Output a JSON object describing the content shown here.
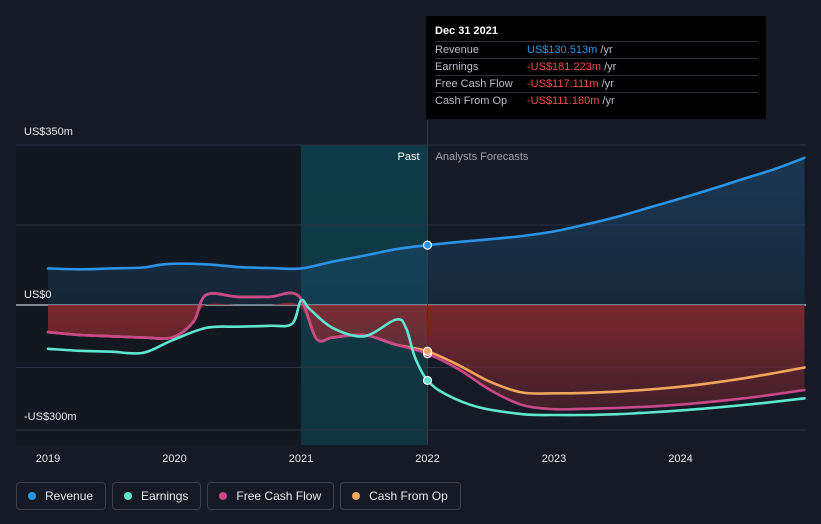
{
  "tooltip": {
    "date": "Dec 31 2021",
    "rows": [
      {
        "label": "Revenue",
        "value": "US$130.513m",
        "unit": "/yr",
        "color": "#2b93e6"
      },
      {
        "label": "Earnings",
        "value": "-US$181.223m",
        "unit": "/yr",
        "color": "#ef4d4d"
      },
      {
        "label": "Free Cash Flow",
        "value": "-US$117.111m",
        "unit": "/yr",
        "color": "#ef4d4d"
      },
      {
        "label": "Cash From Op",
        "value": "-US$111.180m",
        "unit": "/yr",
        "color": "#ef4d4d"
      }
    ]
  },
  "legend": [
    {
      "label": "Revenue",
      "color": "#2b93e6"
    },
    {
      "label": "Earnings",
      "color": "#5ee6cf"
    },
    {
      "label": "Free Cash Flow",
      "color": "#c8488a"
    },
    {
      "label": "Cash From Op",
      "color": "#f2a55c"
    }
  ],
  "chart_data": {
    "type": "line",
    "title": "",
    "xlabel": "",
    "ylabel": "",
    "xlim": [
      2018.75,
      2024.98
    ],
    "ylim": [
      -300,
      350
    ],
    "y_tick_labels": [
      {
        "value": 350,
        "label": "US$350m"
      },
      {
        "value": 0,
        "label": "US$0"
      },
      {
        "value": -300,
        "label": "-US$300m"
      }
    ],
    "x_ticks": [
      2019,
      2020,
      2021,
      2022,
      2023,
      2024
    ],
    "x_tick_labels": [
      "2019",
      "2020",
      "2021",
      "2022",
      "2023",
      "2024"
    ],
    "divider_x": 2022.0,
    "highlight_range": [
      2021.0,
      2022.0
    ],
    "past_label": "Past",
    "forecast_label": "Analysts Forecasts",
    "series": [
      {
        "name": "Revenue",
        "color": "#2b93e6",
        "x": [
          2019.0,
          2019.25,
          2019.5,
          2019.75,
          2019.95,
          2020.25,
          2020.5,
          2020.75,
          2021.0,
          2021.25,
          2021.5,
          2021.75,
          2022.0,
          2022.25,
          2022.5,
          2022.75,
          2023.0,
          2023.25,
          2023.5,
          2023.75,
          2024.0,
          2024.25,
          2024.5,
          2024.75,
          2024.98
        ],
        "values": [
          80,
          78,
          80,
          82,
          90,
          89,
          83,
          81,
          80,
          95,
          108,
          122,
          131,
          138,
          144,
          151,
          161,
          176,
          193,
          213,
          233,
          254,
          276,
          298,
          322
        ]
      },
      {
        "name": "Earnings",
        "color": "#5ee6cf",
        "x": [
          2019.0,
          2019.25,
          2019.5,
          2019.75,
          2019.98,
          2020.25,
          2020.5,
          2020.75,
          2020.93,
          2021.0,
          2021.07,
          2021.25,
          2021.5,
          2021.75,
          2021.83,
          2021.9,
          2022.0,
          2022.15,
          2022.4,
          2022.75,
          2023.0,
          2023.25,
          2023.5,
          2023.75,
          2024.0,
          2024.25,
          2024.5,
          2024.75,
          2024.98
        ],
        "values": [
          -105,
          -110,
          -112,
          -115,
          -85,
          -55,
          -52,
          -50,
          -45,
          10,
          -10,
          -55,
          -75,
          -35,
          -55,
          -125,
          -181,
          -215,
          -245,
          -262,
          -264,
          -264,
          -262,
          -258,
          -253,
          -247,
          -240,
          -232,
          -224
        ]
      },
      {
        "name": "Free Cash Flow",
        "color": "#c8488a",
        "x": [
          2019.0,
          2019.25,
          2019.5,
          2019.75,
          2019.98,
          2020.15,
          2020.25,
          2020.5,
          2020.75,
          2020.98,
          2021.12,
          2021.25,
          2021.5,
          2021.75,
          2022.0,
          2022.25,
          2022.5,
          2022.75,
          2023.0,
          2023.25,
          2023.5,
          2023.75,
          2024.0,
          2024.25,
          2024.5,
          2024.75,
          2024.98
        ],
        "values": [
          -65,
          -72,
          -75,
          -78,
          -78,
          -40,
          22,
          18,
          18,
          20,
          -80,
          -78,
          -72,
          -95,
          -117,
          -155,
          -205,
          -240,
          -250,
          -249,
          -247,
          -244,
          -239,
          -232,
          -224,
          -214,
          -204
        ]
      },
      {
        "name": "Cash From Op",
        "color": "#f2a55c",
        "x": [
          2019.0,
          2019.25,
          2019.5,
          2019.75,
          2019.98,
          2020.15,
          2020.25,
          2020.5,
          2020.75,
          2020.98,
          2021.12,
          2021.25,
          2021.5,
          2021.75,
          2022.0,
          2022.25,
          2022.5,
          2022.75,
          2023.0,
          2023.25,
          2023.5,
          2023.75,
          2024.0,
          2024.25,
          2024.5,
          2024.75,
          2024.98
        ],
        "values": [
          -65,
          -72,
          -75,
          -78,
          -78,
          -40,
          22,
          18,
          18,
          20,
          -80,
          -78,
          -72,
          -95,
          -111,
          -145,
          -185,
          -210,
          -212,
          -211,
          -208,
          -203,
          -196,
          -187,
          -176,
          -163,
          -150
        ]
      }
    ]
  }
}
